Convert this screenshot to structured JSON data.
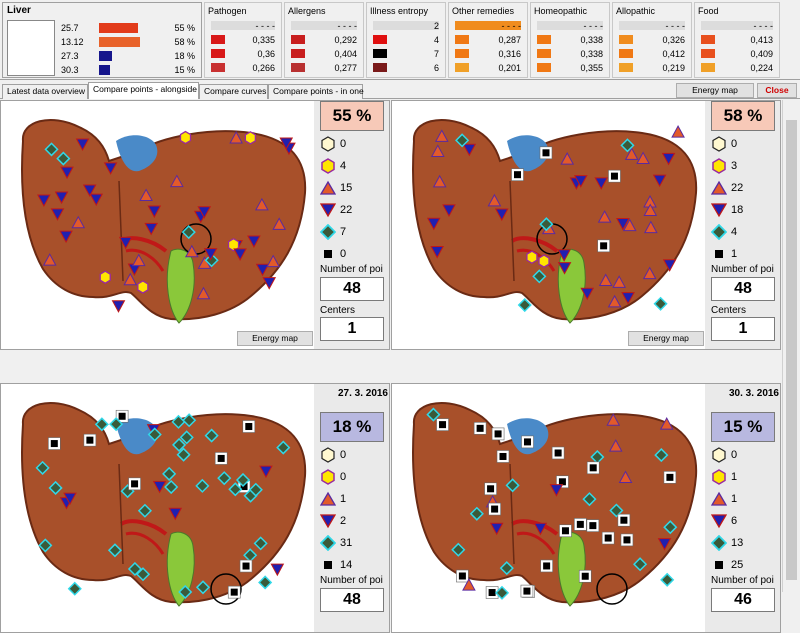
{
  "liver": {
    "title": "Liver",
    "rows": [
      {
        "value": "25.7",
        "percent": "55 %",
        "color": "#e23b1a",
        "fraction": 0.55
      },
      {
        "value": "13.12",
        "percent": "58 %",
        "color": "#e8622a",
        "fraction": 0.58
      },
      {
        "value": "27.3",
        "percent": "18 %",
        "color": "#16168c",
        "fraction": 0.18
      },
      {
        "value": "30.3",
        "percent": "15 %",
        "color": "#16168c",
        "fraction": 0.15
      }
    ]
  },
  "groups": [
    {
      "title": "Pathogen",
      "rows": [
        {
          "value": "- - - -",
          "color": "#dcdcdc"
        },
        {
          "value": "0,335",
          "color": "#d81818"
        },
        {
          "value": "0,36",
          "color": "#d81818"
        },
        {
          "value": "0,266",
          "color": "#c83030"
        }
      ]
    },
    {
      "title": "Allergens",
      "rows": [
        {
          "value": "- - - -",
          "color": "#dcdcdc"
        },
        {
          "value": "0,292",
          "color": "#c81e1e"
        },
        {
          "value": "0,404",
          "color": "#c81e1e"
        },
        {
          "value": "0,277",
          "color": "#b83030"
        }
      ]
    },
    {
      "title": "Illness entropy",
      "rows": [
        {
          "value": "2",
          "color": "#dcdcdc"
        },
        {
          "value": "4",
          "color": "#e01010"
        },
        {
          "value": "7",
          "color": "#000000"
        },
        {
          "value": "6",
          "color": "#7a1a1a"
        }
      ]
    },
    {
      "title": "Other remedies",
      "rows": [
        {
          "value": "- - - -",
          "color": "#f08c1e"
        },
        {
          "value": "0,287",
          "color": "#f07814"
        },
        {
          "value": "0,316",
          "color": "#f07814"
        },
        {
          "value": "0,201",
          "color": "#f0a028"
        }
      ]
    },
    {
      "title": "Homeopathic",
      "rows": [
        {
          "value": "- - - -",
          "color": "#dcdcdc"
        },
        {
          "value": "0,338",
          "color": "#f07814"
        },
        {
          "value": "0,338",
          "color": "#f07814"
        },
        {
          "value": "0,355",
          "color": "#f07814"
        }
      ]
    },
    {
      "title": "Allopathic",
      "rows": [
        {
          "value": "- - - -",
          "color": "#dcdcdc"
        },
        {
          "value": "0,326",
          "color": "#f08c1e"
        },
        {
          "value": "0,412",
          "color": "#f07814"
        },
        {
          "value": "0,219",
          "color": "#f0a028"
        }
      ]
    },
    {
      "title": "Food",
      "rows": [
        {
          "value": "- - - -",
          "color": "#dcdcdc"
        },
        {
          "value": "0,413",
          "color": "#e8501e"
        },
        {
          "value": "0,409",
          "color": "#e8501e"
        },
        {
          "value": "0,224",
          "color": "#f0a028"
        }
      ]
    }
  ],
  "tabs": [
    "Latest data overview",
    "Compare points - alongside",
    "Compare curves",
    "Compare points - in one"
  ],
  "active_tab": 1,
  "energy_map_label": "Energy map",
  "close_label": "Close",
  "panels": [
    {
      "date": "",
      "percent": "55 %",
      "percent_bg": "#f7c9b8",
      "counts": [
        "0",
        "4",
        "15",
        "22",
        "7",
        "0"
      ],
      "num_label": "Number of poi",
      "num_value": "48",
      "centers_label": "Centers",
      "centers_value": "1",
      "energy_label": "Energy map"
    },
    {
      "date": "",
      "percent": "58 %",
      "percent_bg": "#f7c9b8",
      "counts": [
        "0",
        "3",
        "22",
        "18",
        "4",
        "1"
      ],
      "num_label": "Number of poi",
      "num_value": "48",
      "centers_label": "Centers",
      "centers_value": "1",
      "energy_label": "Energy map"
    },
    {
      "date": "27. 3. 2016",
      "percent": "18 %",
      "percent_bg": "#b8b8e0",
      "counts": [
        "0",
        "0",
        "1",
        "2",
        "31",
        "14"
      ],
      "num_label": "Number of poi",
      "num_value": "48",
      "centers_label": "",
      "centers_value": "",
      "energy_label": ""
    },
    {
      "date": "30. 3. 2016",
      "percent": "15 %",
      "percent_bg": "#b8b8e0",
      "counts": [
        "0",
        "1",
        "1",
        "6",
        "13",
        "25"
      ],
      "num_label": "Number of poi",
      "num_value": "46",
      "centers_label": "",
      "centers_value": "",
      "energy_label": ""
    }
  ],
  "icon_names": [
    "hexagon-icon",
    "hexagon-purple-icon",
    "triangle-up-icon",
    "triangle-down-icon",
    "diamond-icon",
    "square-icon"
  ]
}
